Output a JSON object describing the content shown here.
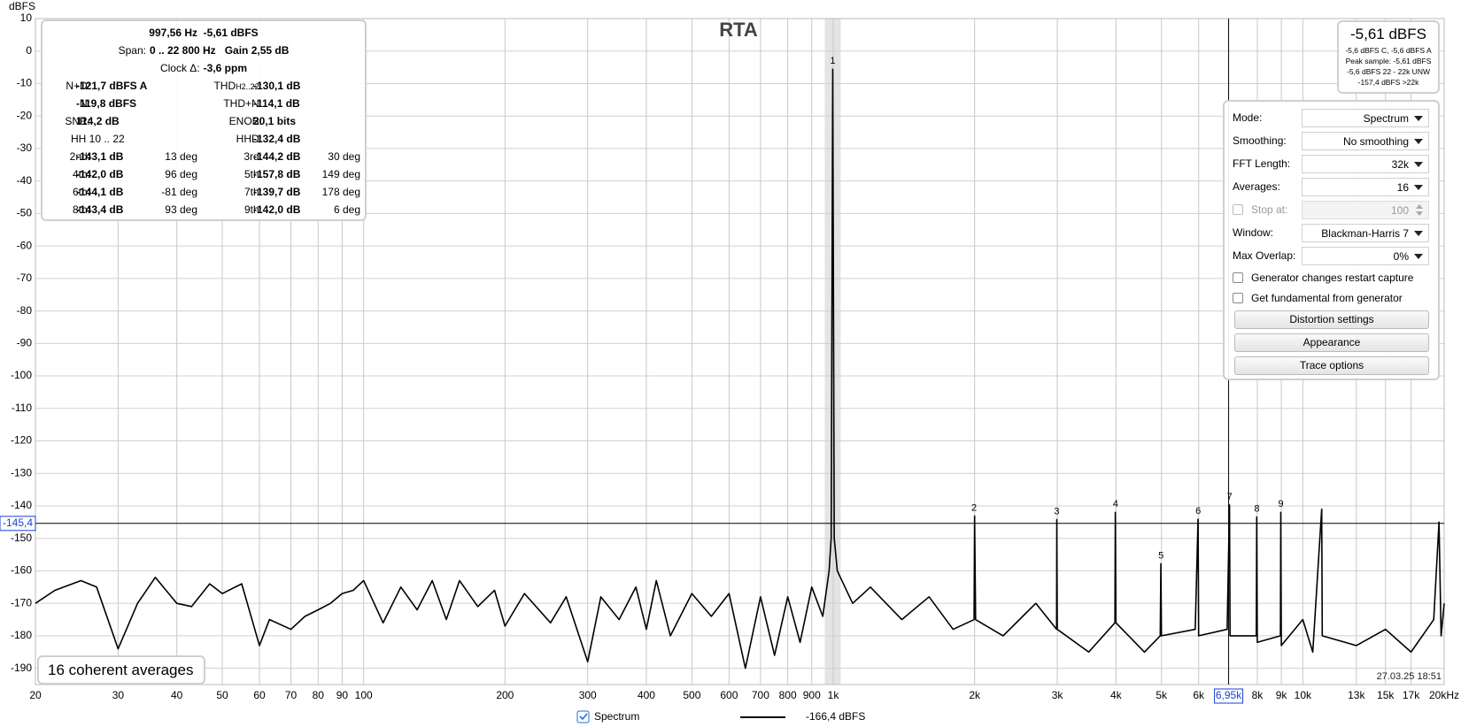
{
  "chart_data": {
    "type": "line",
    "title": "RTA",
    "ylabel": "dBFS",
    "xscale": "log",
    "grid": true,
    "xlim": [
      20,
      20000
    ],
    "ylim": [
      -195,
      10
    ],
    "xticks": [
      20,
      30,
      40,
      50,
      60,
      70,
      80,
      90,
      100,
      200,
      300,
      400,
      500,
      600,
      700,
      800,
      900,
      {
        "value": 1000,
        "label": "1k"
      },
      {
        "value": 2000,
        "label": "2k"
      },
      {
        "value": 3000,
        "label": "3k"
      },
      {
        "value": 4000,
        "label": "4k"
      },
      {
        "value": 5000,
        "label": "5k"
      },
      {
        "value": 6000,
        "label": "6k"
      },
      {
        "value": 8000,
        "label": "8k"
      },
      {
        "value": 9000,
        "label": "9k"
      },
      {
        "value": 10000,
        "label": "10k"
      },
      {
        "value": 13000,
        "label": "13k"
      },
      {
        "value": 15000,
        "label": "15k"
      },
      {
        "value": 17000,
        "label": "17k"
      },
      {
        "value": 20000,
        "label": "20kHz"
      }
    ],
    "yticks": [
      10,
      0,
      -10,
      -20,
      -30,
      -40,
      -50,
      -60,
      -70,
      -80,
      -90,
      -100,
      -110,
      -120,
      -130,
      -140,
      -150,
      -160,
      -170,
      -180,
      -190
    ],
    "x": [
      20,
      22,
      25,
      27,
      30,
      33,
      36,
      40,
      43,
      47,
      50,
      55,
      60,
      63,
      70,
      75,
      80,
      85,
      90,
      95,
      100,
      110,
      120,
      130,
      140,
      150,
      160,
      175,
      190,
      200,
      220,
      250,
      270,
      300,
      320,
      350,
      380,
      400,
      420,
      450,
      500,
      550,
      600,
      650,
      700,
      750,
      800,
      850,
      900,
      950,
      980,
      990,
      997.56,
      1005,
      1020,
      1100,
      1200,
      1400,
      1600,
      1800,
      1995,
      2000,
      2010,
      2300,
      2700,
      2990,
      2993,
      3000,
      3500,
      3980,
      3988,
      4000,
      4600,
      4970,
      4986,
      5000,
      5900,
      5983,
      6000,
      6900,
      6980,
      7000,
      7960,
      7978,
      8000,
      8960,
      8976,
      9000,
      10000,
      10500,
      10970,
      11000,
      13000,
      15000,
      17000,
      19000,
      19500,
      19700,
      20000
    ],
    "series": [
      {
        "name": "Spectrum",
        "legend_value": "-166,4 dBFS",
        "color": "#000000",
        "values": [
          -170,
          -166,
          -163,
          -165,
          -184,
          -170,
          -162,
          -170,
          -171,
          -164,
          -167,
          -164,
          -183,
          -175,
          -178,
          -174,
          -172,
          -170,
          -167,
          -166,
          -163,
          -176,
          -165,
          -172,
          -163,
          -175,
          -163,
          -171,
          -166,
          -177,
          -167,
          -176,
          -168,
          -188,
          -168,
          -175,
          -165,
          -178,
          -163,
          -180,
          -167,
          -174,
          -167,
          -190,
          -168,
          -186,
          -168,
          -182,
          -165,
          -174,
          -160,
          -150,
          -5.61,
          -150,
          -160,
          -170,
          -165,
          -175,
          -168,
          -178,
          -175,
          -143.1,
          -175,
          -180,
          -170,
          -178,
          -144.2,
          -178,
          -185,
          -176,
          -142.0,
          -176,
          -185,
          -180,
          -157.8,
          -180,
          -178,
          -144.1,
          -180,
          -178,
          -139.7,
          -180,
          -180,
          -143.4,
          -182,
          -180,
          -142.0,
          -183,
          -175,
          -185,
          -141,
          -180,
          -183,
          -178,
          -185,
          -175,
          -145,
          -180,
          -170
        ]
      }
    ],
    "harmonic_markers": {
      "labels": [
        "1",
        "2",
        "3",
        "4",
        "5",
        "6",
        "7",
        "8",
        "9"
      ],
      "x": [
        997.56,
        1995.12,
        2992.68,
        3990.24,
        4987.8,
        5985.36,
        6982.92,
        7980.48,
        8978.04
      ],
      "y": [
        -5.61,
        -143.1,
        -144.2,
        -142.0,
        -157.8,
        -144.1,
        -139.7,
        -143.4,
        -142.0
      ]
    },
    "cursor": {
      "x": {
        "value": 6950,
        "label": "6,95k"
      },
      "y": {
        "value": -145.4,
        "label": "-145,4"
      }
    }
  },
  "stats": {
    "header": "997,56 Hz  -5,61 dBFS",
    "span": [
      "Span:",
      "0 .. 22 800 Hz",
      "Gain 2,55 dB"
    ],
    "clock": [
      "Clock Δ:",
      "-3,6 ppm"
    ],
    "metrics": [
      [
        {
          "label": "N+D:",
          "value": "-121,7 dBFS A"
        },
        {
          "label": "THD",
          "sub": "H2..22",
          "suffix": ":",
          "value": "-130,1 dB"
        }
      ],
      [
        {
          "label": "N:",
          "value": "-119,8 dBFS"
        },
        {
          "label": "THD+N:",
          "value": "-114,1 dB"
        }
      ],
      [
        {
          "label": "SNR:",
          "value": "114,2 dB"
        },
        {
          "label": "ENOB:",
          "value": "20,1 bits"
        }
      ],
      [
        {
          "label": "HH 10 .. 22"
        },
        {
          "label": "HHD:",
          "value": "-132,4 dB"
        }
      ]
    ],
    "harmonics": [
      {
        "label": "2nd:",
        "value": "-143,1 dB",
        "phase": "13 deg"
      },
      {
        "label": "3rd:",
        "value": "-144,2 dB",
        "phase": "30 deg"
      },
      {
        "label": "4th:",
        "value": "-142,0 dB",
        "phase": "96 deg"
      },
      {
        "label": "5th:",
        "value": "-157,8 dB",
        "phase": "149 deg"
      },
      {
        "label": "6th:",
        "value": "-144,1 dB",
        "phase": "-81 deg"
      },
      {
        "label": "7th:",
        "value": "-139,7 dB",
        "phase": "178 deg"
      },
      {
        "label": "8th:",
        "value": "-143,4 dB",
        "phase": "93 deg"
      },
      {
        "label": "9th:",
        "value": "-142,0 dB",
        "phase": "6 deg"
      }
    ]
  },
  "level_meter": {
    "main": "-5,61 dBFS",
    "lines": [
      "-5,6 dBFS C, -5,6 dBFS A",
      "Peak sample: -5,61 dBFS",
      "-5,6 dBFS 22 - 22k UNW",
      "-157,4 dBFS >22k"
    ]
  },
  "controls": {
    "dropdowns": [
      {
        "label": "Mode:",
        "value": "Spectrum"
      },
      {
        "label": "Smoothing:",
        "value": "No smoothing"
      },
      {
        "label": "FFT Length:",
        "value": "32k"
      },
      {
        "label": "Averages:",
        "value": "16"
      },
      {
        "label": "Window:",
        "value": "Blackman-Harris 7"
      },
      {
        "label": "Max Overlap:",
        "value": "0%"
      }
    ],
    "stop_at": {
      "label": "Stop at:",
      "value": "100"
    },
    "checkboxes": [
      "Generator changes restart capture",
      "Get fundamental from generator"
    ],
    "buttons": [
      "Distortion settings",
      "Appearance",
      "Trace options"
    ]
  },
  "status": {
    "averages": "16 coherent averages",
    "timestamp": "27.03.25 18:51"
  }
}
